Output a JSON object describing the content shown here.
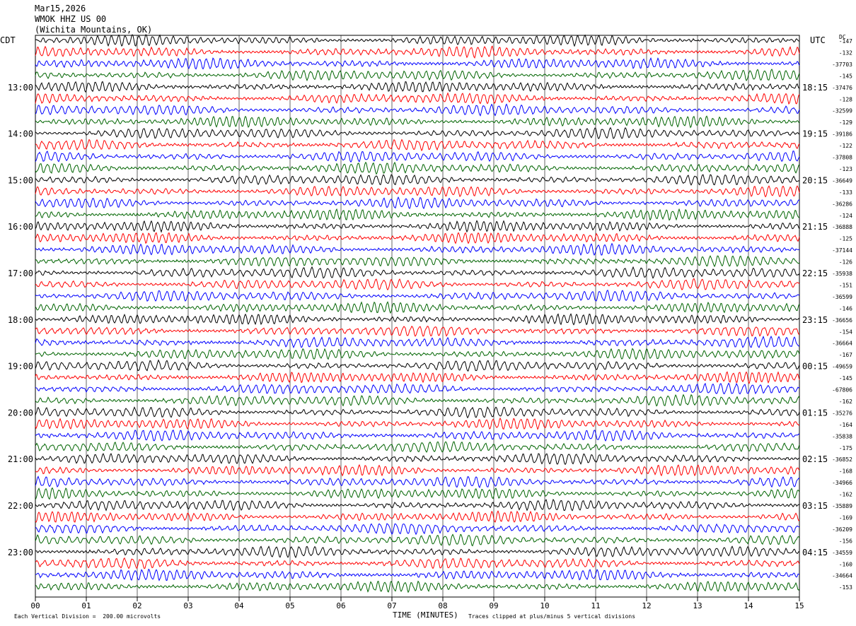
{
  "header": {
    "date": "Mar15,2026",
    "station": "WMOK HHZ US 00",
    "location": "(Wichita Mountains, OK)"
  },
  "left_label": "CDT",
  "right_label": "UTC",
  "dc_label": "DC",
  "footer": {
    "scale_note": "Each Vertical Division =  200.00 microvolts",
    "clip_note": "Traces clipped at plus/minus 5 vertical divisions"
  },
  "chart_data": {
    "type": "line",
    "title": "",
    "xlabel": "TIME (MINUTES)",
    "ylabel": "",
    "xlim": [
      0,
      15
    ],
    "x_ticks": [
      "00",
      "01",
      "02",
      "03",
      "04",
      "05",
      "06",
      "07",
      "08",
      "09",
      "10",
      "11",
      "12",
      "13",
      "14",
      "15"
    ],
    "left_time_labels": [
      "13:00",
      "14:00",
      "15:00",
      "16:00",
      "17:00",
      "18:00",
      "19:00",
      "20:00",
      "21:00",
      "22:00",
      "23:00"
    ],
    "right_time_labels": [
      "18:15",
      "19:15",
      "20:15",
      "21:15",
      "22:15",
      "23:15",
      "00:15",
      "01:15",
      "02:15",
      "03:15",
      "04:15"
    ],
    "trace_colors": [
      "#000000",
      "#ff0000",
      "#0000ff",
      "#006400"
    ],
    "trace_count": 48,
    "traces_per_hour": 4,
    "grid_vertical": true,
    "dc_offsets": [
      "-147",
      "-132",
      "-37703",
      "-145",
      "-37476",
      "-128",
      "-32599",
      "-129",
      "-39186",
      "-122",
      "-37808",
      "-123",
      "-36649",
      "-133",
      "-36286",
      "-124",
      "-36888",
      "-125",
      "-37144",
      "-126",
      "-35938",
      "-151",
      "-36599",
      "-146",
      "-36656",
      "-154",
      "-36664",
      "-167",
      "-49659",
      "-145",
      "-67806",
      "-162",
      "-35276",
      "-164",
      "-35838",
      "-175",
      "-36852",
      "-168",
      "-34966",
      "-162",
      "-35889",
      "-169",
      "-36209",
      "-156",
      "-34559",
      "-160",
      "-34664",
      "-153"
    ]
  }
}
